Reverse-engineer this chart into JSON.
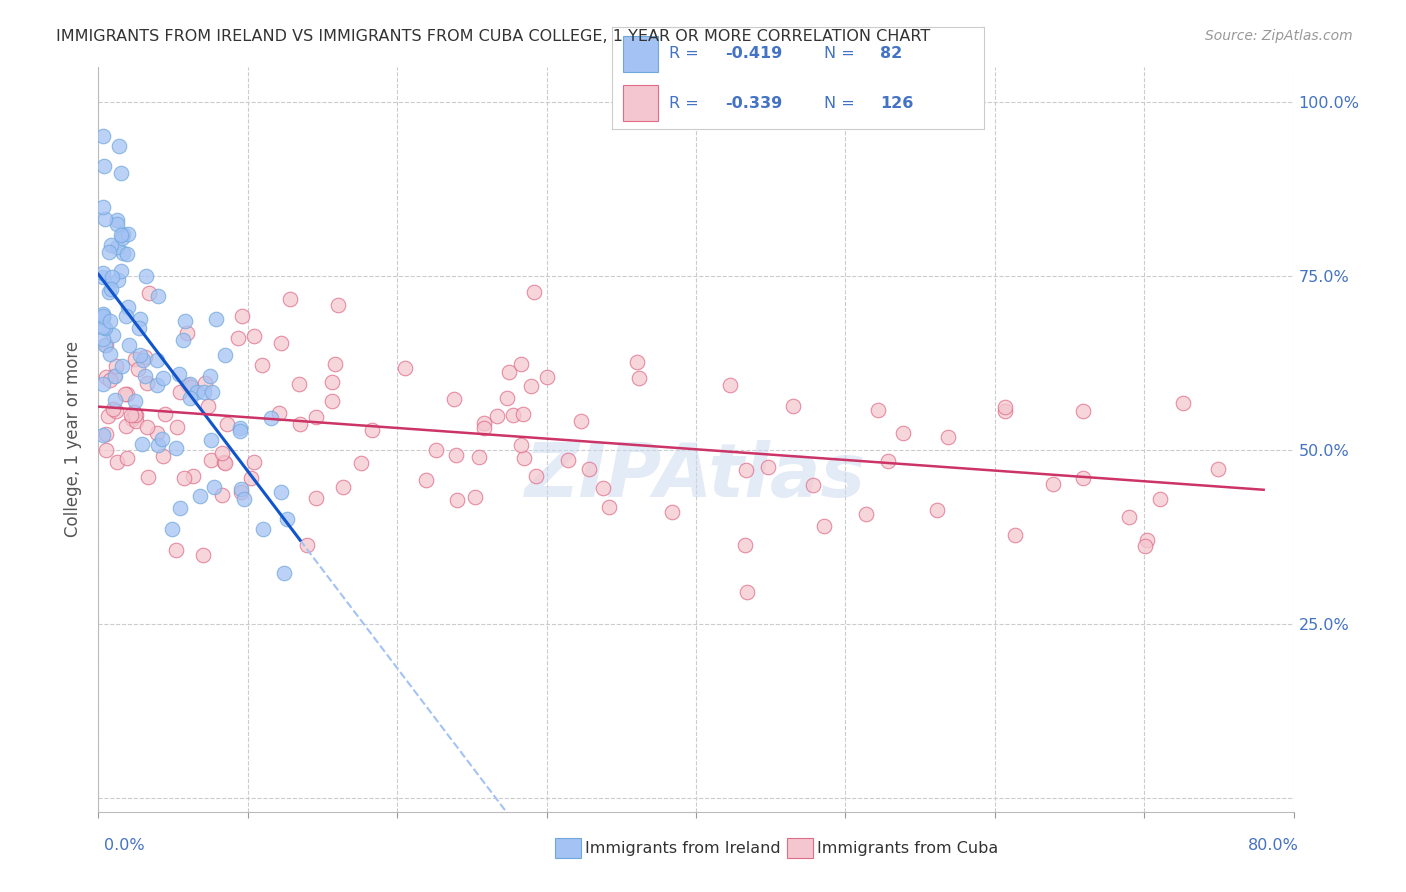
{
  "title": "IMMIGRANTS FROM IRELAND VS IMMIGRANTS FROM CUBA COLLEGE, 1 YEAR OR MORE CORRELATION CHART",
  "source": "Source: ZipAtlas.com",
  "ylabel": "College, 1 year or more",
  "ireland_R": -0.419,
  "ireland_N": 82,
  "cuba_R": -0.339,
  "cuba_N": 126,
  "ireland_color": "#a4c2f4",
  "cuba_color": "#f4c7d0",
  "ireland_edge_color": "#6fa8dc",
  "cuba_edge_color": "#e06c88",
  "ireland_line_color": "#1155cc",
  "cuba_line_color": "#cc3366",
  "dashed_line_color": "#a4c2f4",
  "legend_text_color": "#4472c4",
  "watermark": "ZIPAtlas",
  "xlim": [
    0.0,
    0.8
  ],
  "ylim": [
    0.0,
    1.05
  ],
  "grid_color": "#cccccc",
  "background_color": "#ffffff",
  "title_color": "#333333",
  "source_color": "#999999",
  "ylabel_color": "#555555"
}
